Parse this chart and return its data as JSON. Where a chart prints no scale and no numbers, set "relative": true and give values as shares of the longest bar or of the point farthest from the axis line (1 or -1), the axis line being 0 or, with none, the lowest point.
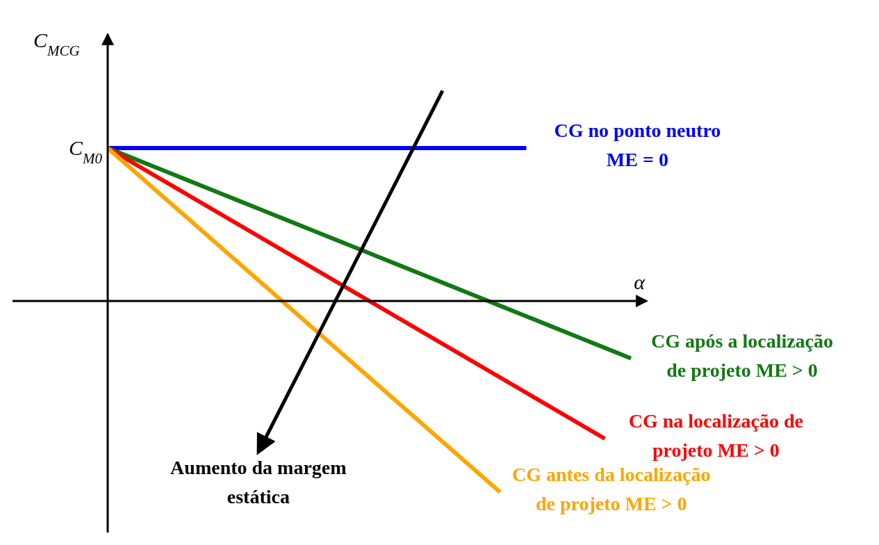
{
  "chart_data": {
    "type": "line",
    "relative": true,
    "xlabel": "α",
    "ylabel": "C$_{MCG}$",
    "categories": [
      null,
      null,
      null,
      null,
      null,
      null,
      null,
      null,
      null,
      null,
      null,
      null,
      null,
      null,
      null,
      null,
      null,
      null,
      null,
      null,
      null
    ],
    "series": [
      {
        "name": "CG no ponto neutro\nME = 0",
        "color": "#0000ff",
        "values": [
          0.8,
          0.8,
          0.8,
          0.8,
          0.8,
          0.8,
          0.8,
          0.8,
          0.8,
          0.8,
          0.8,
          0.8,
          0.8,
          0.8,
          0.8,
          0.8,
          0.8,
          null,
          null,
          null,
          null
        ]
      },
      {
        "name": "CG após a localização\nde projeto ME > 0",
        "color": "#147814",
        "values": [
          0.8,
          0.745,
          0.69,
          0.635,
          0.58,
          0.525,
          0.47,
          0.415,
          0.36,
          0.305,
          0.25,
          0.195,
          0.14,
          0.085,
          0.03,
          -0.025,
          -0.08,
          -0.135,
          -0.19,
          -0.245,
          -0.3
        ]
      },
      {
        "name": "CG na localização de\nprojeto ME > 0",
        "color": "#ff0000",
        "values": [
          0.8,
          0.72,
          0.64,
          0.56,
          0.48,
          0.4,
          0.32,
          0.24,
          0.16,
          0.08,
          0,
          -0.08,
          -0.16,
          -0.24,
          -0.32,
          -0.4,
          -0.48,
          -0.56,
          -0.64,
          -0.72,
          null
        ]
      },
      {
        "name": "CG antes da localização\nde projeto ME > 0",
        "color": "#ffa500",
        "values": [
          0.8,
          0.68,
          0.56,
          0.44,
          0.32,
          0.2,
          0.08,
          -0.04,
          -0.16,
          -0.28,
          -0.4,
          -0.52,
          -0.64,
          -0.76,
          -0.88,
          -1.0,
          null,
          null,
          null,
          null,
          null
        ]
      }
    ],
    "annotations": [
      "C$_{M0}$",
      "Aumento da margem\nestática"
    ]
  }
}
